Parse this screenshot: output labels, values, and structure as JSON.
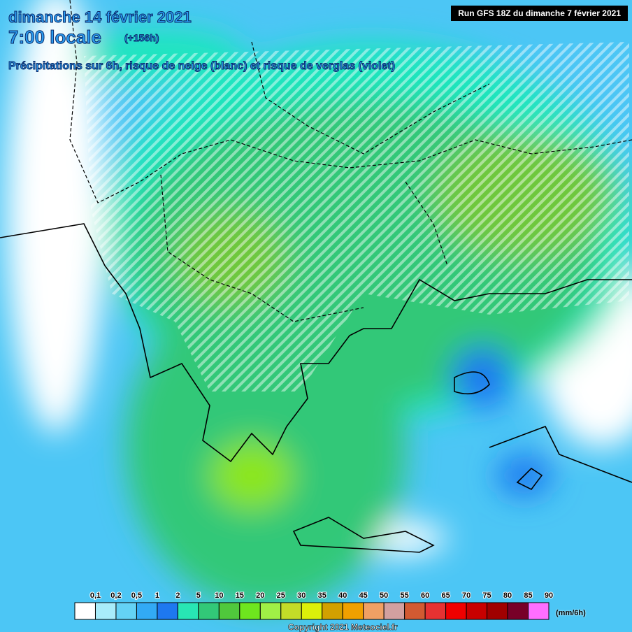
{
  "header": {
    "date": "dimanche 14 février 2021",
    "time": "7:00 locale",
    "lead": "(+156h)",
    "subtitle": "Précipitations sur 6h, risque de neige (blanc) et risque de verglas (violet)",
    "run": "Run GFS 18Z du dimanche 7 février 2021"
  },
  "legend": {
    "labels": [
      "0,1",
      "0,2",
      "0,5",
      "1",
      "2",
      "5",
      "10",
      "15",
      "20",
      "25",
      "30",
      "35",
      "40",
      "45",
      "50",
      "55",
      "60",
      "65",
      "70",
      "75",
      "80",
      "85",
      "90"
    ],
    "colors": [
      "#ffffff",
      "#a8ecfa",
      "#64d2f5",
      "#32aaf5",
      "#1e78f0",
      "#28e6b4",
      "#32c878",
      "#50c83c",
      "#6ee61e",
      "#a0f046",
      "#c3dc28",
      "#dcf00a",
      "#d2a000",
      "#f0a000",
      "#f0a064",
      "#d2a0a0",
      "#d25a32",
      "#e63232",
      "#f00000",
      "#c80000",
      "#a00000",
      "#780028",
      "#ff6eff"
    ],
    "unit": "(mm/6h)"
  },
  "footer": {
    "copyright": "Copyright 2021 Meteociel.fr"
  }
}
